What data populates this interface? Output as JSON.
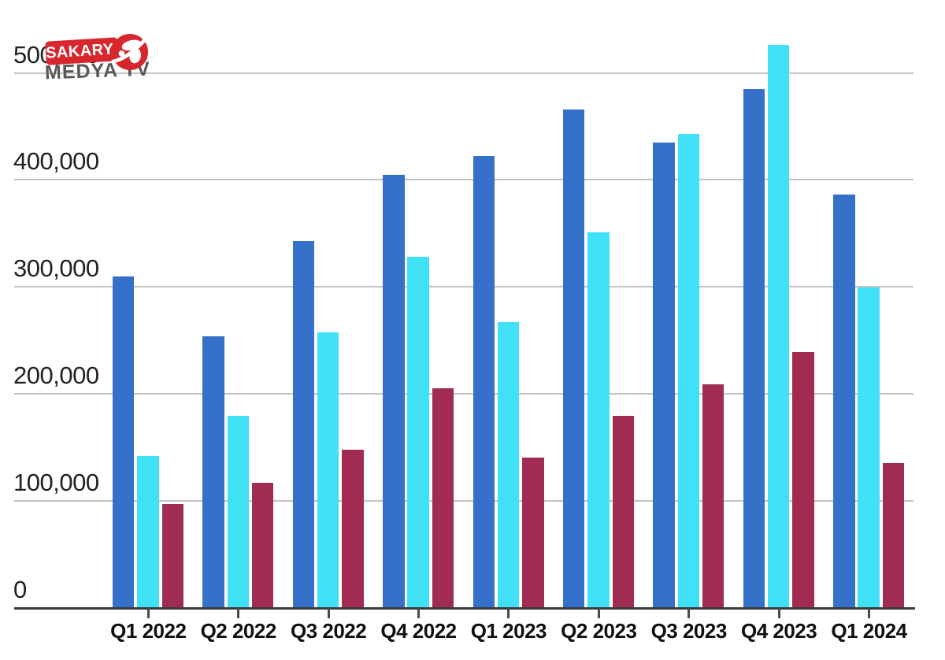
{
  "logo": {
    "badge_text": "SAKARYA",
    "subtitle_text": "MEDYA TV",
    "badge_color": "#d7262d",
    "subtitle_color": "#57585a"
  },
  "colors": {
    "background": "#ffffff",
    "gridline": "#c3c3c3",
    "axis_line": "#3a3a3a",
    "tick_mark": "#4a4a4a",
    "y_label_text": "#222222",
    "x_label_text": "#0f0f0f"
  },
  "chart_data": {
    "type": "bar",
    "title": "",
    "xlabel": "",
    "ylabel": "",
    "categories": [
      "Q1 2022",
      "Q2 2022",
      "Q3 2022",
      "Q4 2022",
      "Q1 2023",
      "Q2 2023",
      "Q3 2023",
      "Q4 2023",
      "Q1 2024"
    ],
    "series": [
      {
        "name": "series_blue",
        "color": "#3571c8",
        "values": [
          310000,
          254000,
          343000,
          405000,
          422000,
          466000,
          435000,
          485000,
          386000
        ]
      },
      {
        "name": "series_cyan",
        "color": "#40e0f7",
        "values": [
          142000,
          179000,
          257000,
          328000,
          267000,
          351000,
          443000,
          526000,
          299000
        ]
      },
      {
        "name": "series_dark_red",
        "color": "#a02c52",
        "values": [
          97000,
          117000,
          148000,
          205000,
          140000,
          179000,
          209000,
          239000,
          135000
        ]
      }
    ],
    "ylim": [
      0,
      500000
    ],
    "ytick_values": [
      0,
      100000,
      200000,
      300000,
      400000,
      500000
    ],
    "ytick_labels": [
      "0",
      "100,000",
      "200,000",
      "300,000",
      "400,000",
      "500,000"
    ],
    "grid": true,
    "legend": "none"
  }
}
